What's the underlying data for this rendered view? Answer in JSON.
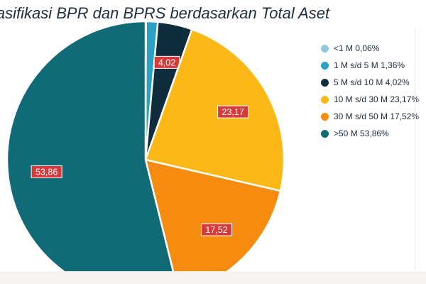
{
  "chart_data": {
    "type": "pie",
    "title": "lasifikasi BPR dan BPRS berdasarkan Total Aset",
    "slices": [
      {
        "legend": "<1 M 0,06%",
        "value": 0.06,
        "label": "",
        "color": "#8ec9e0"
      },
      {
        "legend": "1 M s/d 5 M 1,36%",
        "value": 1.36,
        "label": "",
        "color": "#2aa0c2"
      },
      {
        "legend": "5 M s/d 10 M 4,02%",
        "value": 4.02,
        "label": "4,02",
        "color": "#0f2d3c"
      },
      {
        "legend": "10 M s/d 30 M 23,17%",
        "value": 23.17,
        "label": "23,17",
        "color": "#fcb816"
      },
      {
        "legend": "30 M s/d 50 M 17,52%",
        "value": 17.52,
        "label": "17,52",
        "color": "#f58b0f"
      },
      {
        "legend": ">50 M 53,86%",
        "value": 53.86,
        "label": "53,86",
        "color": "#106b77"
      }
    ],
    "start_angle_deg": 0,
    "direction": "clockwise",
    "legend_position": "right",
    "data_label_color": "#d63a3a"
  }
}
